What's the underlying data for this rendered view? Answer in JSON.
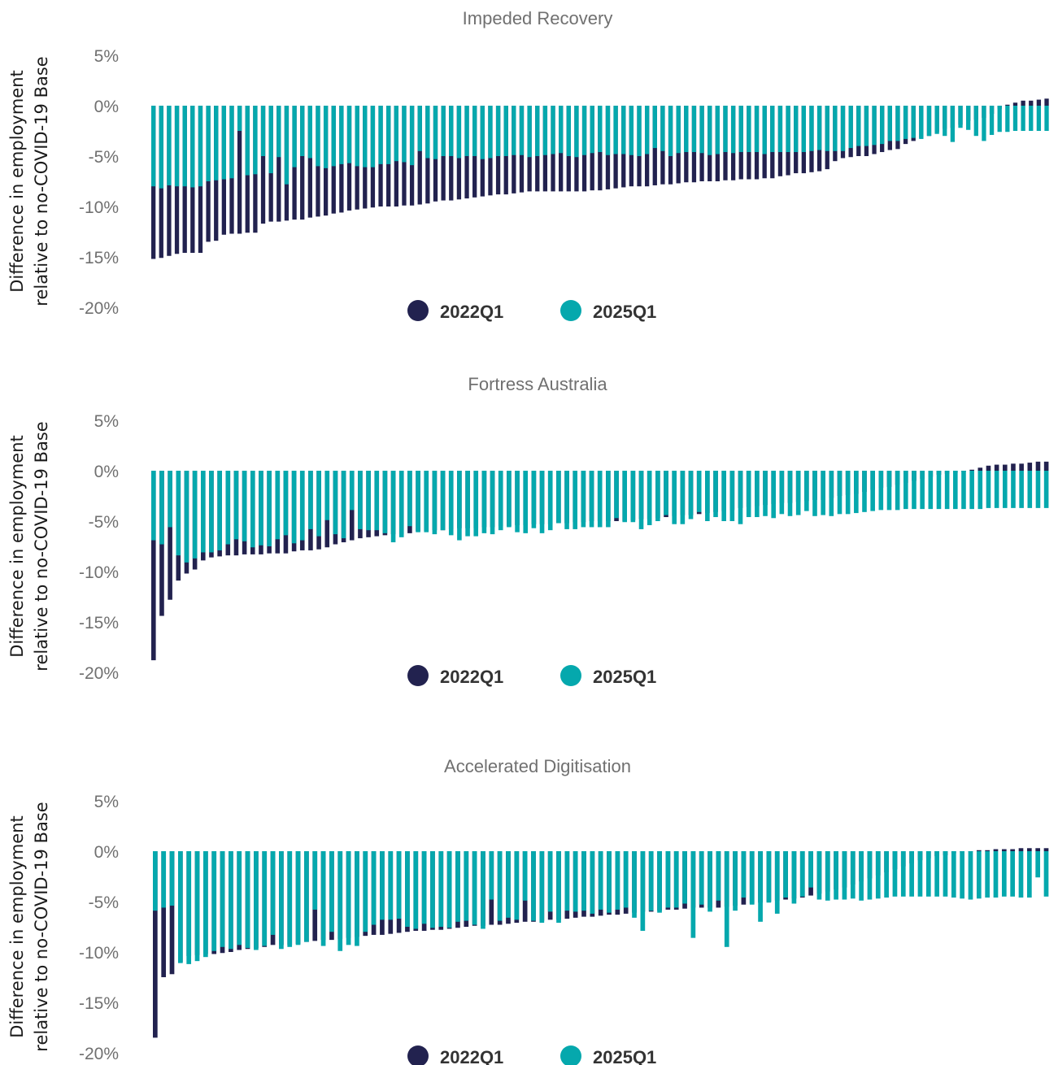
{
  "colors": {
    "series_2022": "#22224f",
    "series_2025": "#05a8ad"
  },
  "chart_data": [
    {
      "type": "bar",
      "title": "Impeded Recovery",
      "ylabel_line1": "Difference in employment",
      "ylabel_line2": "relative to no-COVID-19 Base",
      "yticks": [
        "5%",
        "0%",
        "-5%",
        "-10%",
        "-15%",
        "-20%"
      ],
      "ylim": [
        -20,
        5
      ],
      "legend": [
        "2022Q1",
        "2025Q1"
      ],
      "series": [
        {
          "name": "2022Q1",
          "values": [
            -15.2,
            -15.1,
            -14.9,
            -14.7,
            -14.6,
            -14.6,
            -14.6,
            -13.5,
            -13.4,
            -12.8,
            -12.7,
            -12.7,
            -12.6,
            -12.6,
            -11.7,
            -11.5,
            -11.5,
            -11.4,
            -11.3,
            -11.3,
            -11.1,
            -11.0,
            -10.9,
            -10.7,
            -10.6,
            -10.4,
            -10.3,
            -10.2,
            -10.1,
            -10.0,
            -10.0,
            -10.0,
            -9.9,
            -9.9,
            -9.8,
            -9.7,
            -9.5,
            -9.4,
            -9.4,
            -9.3,
            -9.2,
            -9.1,
            -9.0,
            -8.9,
            -8.8,
            -8.8,
            -8.7,
            -8.6,
            -8.5,
            -8.5,
            -8.5,
            -8.5,
            -8.5,
            -8.5,
            -8.5,
            -8.5,
            -8.4,
            -8.4,
            -8.3,
            -8.2,
            -8.1,
            -8.0,
            -8.0,
            -8.0,
            -7.9,
            -7.8,
            -7.8,
            -7.7,
            -7.6,
            -7.6,
            -7.5,
            -7.5,
            -7.5,
            -7.4,
            -7.4,
            -7.3,
            -7.3,
            -7.3,
            -7.2,
            -7.2,
            -7.0,
            -6.9,
            -6.7,
            -6.7,
            -6.6,
            -6.5,
            -6.3,
            -5.5,
            -5.2,
            -5.1,
            -5.0,
            -5.0,
            -4.8,
            -4.6,
            -4.4,
            -4.3,
            -3.8,
            -3.5,
            -3.2,
            -3.0,
            -2.6,
            -2.3,
            -2.2,
            -1.9,
            -1.5,
            -1.4,
            -1.2,
            -0.8,
            -0.3,
            0.1,
            0.3,
            0.5,
            0.5,
            0.6,
            0.7
          ]
        },
        {
          "name": "2025Q1",
          "values": [
            -8.0,
            -8.2,
            -7.9,
            -8.0,
            -8.0,
            -8.1,
            -8.0,
            -7.5,
            -7.4,
            -7.3,
            -7.2,
            -2.5,
            -6.9,
            -6.8,
            -5.0,
            -6.7,
            -5.1,
            -7.8,
            -6.1,
            -5.0,
            -5.2,
            -6.0,
            -6.2,
            -6.0,
            -5.8,
            -5.7,
            -6.0,
            -6.1,
            -6.1,
            -5.8,
            -5.8,
            -5.5,
            -5.6,
            -5.9,
            -4.5,
            -5.2,
            -5.3,
            -5.0,
            -5.0,
            -5.2,
            -5.0,
            -5.0,
            -5.3,
            -5.2,
            -5.0,
            -5.0,
            -4.9,
            -4.9,
            -5.1,
            -5.0,
            -4.9,
            -4.8,
            -4.7,
            -5.0,
            -5.1,
            -4.9,
            -4.7,
            -4.6,
            -4.9,
            -4.8,
            -4.8,
            -4.9,
            -5.0,
            -4.8,
            -4.2,
            -4.5,
            -5.0,
            -4.7,
            -4.6,
            -4.6,
            -4.7,
            -4.9,
            -4.8,
            -4.6,
            -4.7,
            -4.6,
            -4.6,
            -4.6,
            -4.8,
            -4.6,
            -4.6,
            -4.6,
            -4.6,
            -4.6,
            -4.5,
            -4.4,
            -4.5,
            -4.5,
            -4.5,
            -4.2,
            -4.0,
            -4.0,
            -3.9,
            -3.8,
            -3.5,
            -3.5,
            -3.3,
            -3.2,
            -3.3,
            -3.0,
            -2.8,
            -3.0,
            -3.6,
            -2.2,
            -2.4,
            -3.0,
            -3.5,
            -2.9,
            -2.6,
            -2.6,
            -2.5,
            -2.5,
            -2.5,
            -2.5,
            -2.5
          ]
        }
      ]
    },
    {
      "type": "bar",
      "title": "Fortress Australia",
      "ylabel_line1": "Difference in employment",
      "ylabel_line2": "relative to no-COVID-19 Base",
      "yticks": [
        "5%",
        "0%",
        "-5%",
        "-10%",
        "-15%",
        "-20%"
      ],
      "ylim": [
        -20,
        5
      ],
      "legend": [
        "2022Q1",
        "2025Q1"
      ],
      "series": [
        {
          "name": "2022Q1",
          "values": [
            -18.8,
            -14.4,
            -12.8,
            -10.9,
            -10.2,
            -9.8,
            -8.9,
            -8.6,
            -8.5,
            -8.4,
            -8.4,
            -8.3,
            -8.3,
            -8.3,
            -8.2,
            -8.2,
            -8.2,
            -8.0,
            -7.9,
            -7.9,
            -7.8,
            -7.6,
            -7.3,
            -7.1,
            -6.9,
            -6.7,
            -6.6,
            -6.5,
            -6.4,
            -6.3,
            -6.3,
            -6.2,
            -6.0,
            -6.0,
            -5.9,
            -5.9,
            -5.8,
            -5.7,
            -5.7,
            -5.7,
            -5.6,
            -5.6,
            -5.5,
            -5.5,
            -5.4,
            -5.4,
            -5.3,
            -5.3,
            -5.3,
            -5.2,
            -5.2,
            -5.1,
            -5.1,
            -5.0,
            -5.0,
            -5.0,
            -5.0,
            -5.0,
            -4.9,
            -4.8,
            -4.8,
            -4.7,
            -4.6,
            -4.5,
            -4.4,
            -4.4,
            -4.3,
            -4.2,
            -4.1,
            -4.0,
            -3.9,
            -3.7,
            -3.6,
            -3.5,
            -3.4,
            -3.3,
            -3.2,
            -3.2,
            -3.1,
            -3.0,
            -2.9,
            -2.9,
            -2.7,
            -2.5,
            -2.4,
            -2.3,
            -2.1,
            -1.9,
            -1.7,
            -1.6,
            -1.4,
            -1.2,
            -1.0,
            -0.8,
            -0.6,
            -0.4,
            -0.3,
            -0.2,
            -0.1,
            0.1,
            0.3,
            0.5,
            0.6,
            0.6,
            0.7,
            0.7,
            0.8,
            0.9,
            0.9
          ]
        },
        {
          "name": "2025Q1",
          "values": [
            -6.9,
            -7.3,
            -5.6,
            -8.4,
            -9.1,
            -8.7,
            -8.1,
            -8.1,
            -7.9,
            -7.3,
            -6.8,
            -7.0,
            -7.6,
            -7.4,
            -7.5,
            -6.8,
            -6.4,
            -7.2,
            -6.9,
            -5.8,
            -6.5,
            -4.9,
            -6.3,
            -6.7,
            -3.9,
            -5.8,
            -5.9,
            -5.9,
            -6.2,
            -7.1,
            -6.6,
            -5.5,
            -6.1,
            -6.1,
            -6.3,
            -5.9,
            -6.4,
            -6.9,
            -6.5,
            -6.5,
            -6.2,
            -6.3,
            -5.9,
            -5.6,
            -6.1,
            -6.2,
            -5.7,
            -6.2,
            -5.9,
            -5.2,
            -5.8,
            -5.8,
            -5.6,
            -5.6,
            -5.6,
            -5.6,
            -4.7,
            -5.1,
            -5.1,
            -5.8,
            -5.4,
            -5.0,
            -4.4,
            -5.3,
            -5.3,
            -4.8,
            -4.1,
            -5.0,
            -4.6,
            -5.0,
            -5.0,
            -5.3,
            -4.6,
            -4.6,
            -4.5,
            -4.7,
            -4.3,
            -4.5,
            -4.4,
            -4.0,
            -4.5,
            -4.4,
            -4.5,
            -4.3,
            -4.3,
            -4.2,
            -4.1,
            -4.0,
            -3.9,
            -3.9,
            -3.9,
            -3.8,
            -3.8,
            -3.8,
            -3.8,
            -3.8,
            -3.8,
            -3.8,
            -3.8,
            -3.8,
            -3.8,
            -3.7,
            -3.7,
            -3.7,
            -3.7,
            -3.7,
            -3.7,
            -3.7,
            -3.7
          ]
        }
      ]
    },
    {
      "type": "bar",
      "title": "Accelerated Digitisation",
      "ylabel_line1": "Difference in employment",
      "ylabel_line2": "relative to no-COVID-19 Base",
      "yticks": [
        "5%",
        "0%",
        "-5%",
        "-10%",
        "-15%",
        "-20%"
      ],
      "ylim": [
        -20,
        5
      ],
      "legend": [
        "2022Q1",
        "2025Q1"
      ],
      "series": [
        {
          "name": "2022Q1",
          "values": [
            -18.5,
            -12.5,
            -12.2,
            -11.0,
            -10.4,
            -10.3,
            -10.2,
            -10.2,
            -10.1,
            -10.0,
            -9.8,
            -9.7,
            -9.6,
            -9.5,
            -9.3,
            -9.3,
            -9.3,
            -9.2,
            -9.0,
            -8.9,
            -8.8,
            -8.8,
            -8.7,
            -8.6,
            -8.5,
            -8.4,
            -8.3,
            -8.3,
            -8.2,
            -8.1,
            -8.0,
            -7.9,
            -7.9,
            -7.8,
            -7.8,
            -7.7,
            -7.6,
            -7.5,
            -7.4,
            -7.4,
            -7.3,
            -7.3,
            -7.2,
            -7.1,
            -7.0,
            -7.0,
            -6.9,
            -6.8,
            -6.8,
            -6.7,
            -6.6,
            -6.5,
            -6.5,
            -6.4,
            -6.3,
            -6.3,
            -6.2,
            -6.1,
            -6.0,
            -6.0,
            -5.9,
            -5.8,
            -5.8,
            -5.7,
            -5.6,
            -5.6,
            -5.6,
            -5.6,
            -5.5,
            -5.4,
            -5.3,
            -5.2,
            -5.1,
            -5.0,
            -4.9,
            -4.8,
            -4.7,
            -4.6,
            -4.4,
            -4.2,
            -4.0,
            -3.8,
            -3.6,
            -3.3,
            -3.0,
            -2.7,
            -2.4,
            -2.1,
            -1.8,
            -1.5,
            -1.2,
            -0.9,
            -0.7,
            -0.5,
            -0.4,
            -0.2,
            -0.1,
            0.0,
            0.1,
            0.1,
            0.2,
            0.2,
            0.2,
            0.3,
            0.3,
            0.3,
            0.3
          ]
        },
        {
          "name": "2025Q1",
          "values": [
            -5.9,
            -5.6,
            -5.4,
            -11.1,
            -11.2,
            -10.9,
            -10.5,
            -9.9,
            -9.5,
            -9.7,
            -9.3,
            -9.6,
            -9.8,
            -9.4,
            -8.3,
            -9.7,
            -9.5,
            -9.3,
            -9.0,
            -5.8,
            -9.4,
            -8.0,
            -9.9,
            -9.3,
            -9.4,
            -8.0,
            -7.3,
            -6.8,
            -6.8,
            -6.7,
            -7.5,
            -7.7,
            -7.2,
            -7.6,
            -7.5,
            -7.6,
            -7.0,
            -6.9,
            -7.3,
            -7.7,
            -4.8,
            -6.9,
            -6.6,
            -6.8,
            -4.9,
            -6.9,
            -7.1,
            -6.0,
            -7.1,
            -5.9,
            -6.0,
            -5.9,
            -6.2,
            -5.8,
            -6.1,
            -5.8,
            -5.6,
            -6.6,
            -7.9,
            -5.9,
            -6.1,
            -5.6,
            -5.6,
            -5.2,
            -8.6,
            -5.3,
            -6.0,
            -4.9,
            -9.5,
            -5.9,
            -4.6,
            -5.3,
            -7.0,
            -5.1,
            -6.2,
            -4.6,
            -5.2,
            -4.5,
            -3.6,
            -4.8,
            -4.9,
            -4.8,
            -4.8,
            -4.7,
            -4.9,
            -4.8,
            -4.7,
            -4.6,
            -4.5,
            -4.5,
            -4.5,
            -4.5,
            -4.5,
            -4.5,
            -4.5,
            -4.6,
            -4.7,
            -4.8,
            -4.7,
            -4.6,
            -4.6,
            -4.5,
            -4.5,
            -4.6,
            -4.6,
            -2.6,
            -4.5
          ]
        }
      ]
    }
  ]
}
